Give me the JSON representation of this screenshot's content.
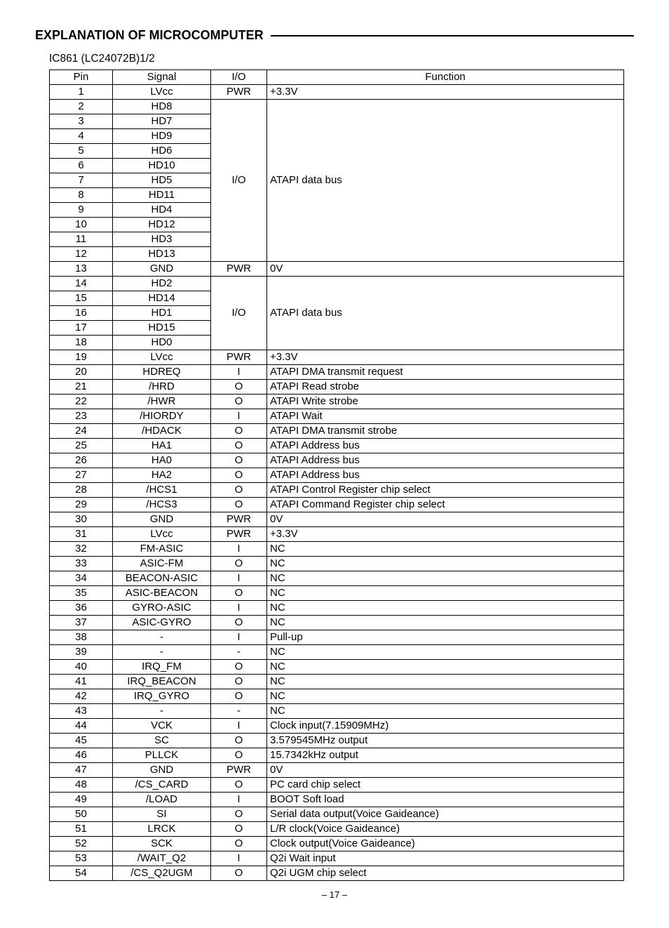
{
  "title": "EXPLANATION OF MICROCOMPUTER",
  "subtitle": "IC861 (LC24072B)1/2",
  "pageNumber": "– 17 –",
  "headers": {
    "pin": "Pin",
    "signal": "Signal",
    "io": "I/O",
    "function": "Function"
  },
  "rows": [
    {
      "pin": "1",
      "signal": "LVcc",
      "io": "PWR",
      "fn": "+3.3V"
    },
    {
      "pin": "2",
      "signal": "HD8",
      "io": "I/O",
      "fn": "ATAPI data bus",
      "iospan": 11,
      "fnspan": 11
    },
    {
      "pin": "3",
      "signal": "HD7"
    },
    {
      "pin": "4",
      "signal": "HD9"
    },
    {
      "pin": "5",
      "signal": "HD6"
    },
    {
      "pin": "6",
      "signal": "HD10"
    },
    {
      "pin": "7",
      "signal": "HD5"
    },
    {
      "pin": "8",
      "signal": "HD11"
    },
    {
      "pin": "9",
      "signal": "HD4"
    },
    {
      "pin": "10",
      "signal": "HD12"
    },
    {
      "pin": "11",
      "signal": "HD3"
    },
    {
      "pin": "12",
      "signal": "HD13"
    },
    {
      "pin": "13",
      "signal": "GND",
      "io": "PWR",
      "fn": "0V"
    },
    {
      "pin": "14",
      "signal": "HD2",
      "io": "I/O",
      "fn": "ATAPI data bus",
      "iospan": 5,
      "fnspan": 5
    },
    {
      "pin": "15",
      "signal": "HD14"
    },
    {
      "pin": "16",
      "signal": "HD1"
    },
    {
      "pin": "17",
      "signal": "HD15"
    },
    {
      "pin": "18",
      "signal": "HD0"
    },
    {
      "pin": "19",
      "signal": "LVcc",
      "io": "PWR",
      "fn": "+3.3V"
    },
    {
      "pin": "20",
      "signal": "HDREQ",
      "io": "I",
      "fn": "ATAPI  DMA transmit request"
    },
    {
      "pin": "21",
      "signal": "/HRD",
      "io": "O",
      "fn": "ATAPI  Read strobe"
    },
    {
      "pin": "22",
      "signal": "/HWR",
      "io": "O",
      "fn": "ATAPI  Write strobe"
    },
    {
      "pin": "23",
      "signal": "/HIORDY",
      "io": "I",
      "fn": "ATAPI  Wait"
    },
    {
      "pin": "24",
      "signal": "/HDACK",
      "io": "O",
      "fn": "ATAPI  DMA transmit strobe"
    },
    {
      "pin": "25",
      "signal": "HA1",
      "io": "O",
      "fn": "ATAPI Address bus"
    },
    {
      "pin": "26",
      "signal": "HA0",
      "io": "O",
      "fn": "ATAPI Address bus"
    },
    {
      "pin": "27",
      "signal": "HA2",
      "io": "O",
      "fn": "ATAPI Address bus"
    },
    {
      "pin": "28",
      "signal": "/HCS1",
      "io": "O",
      "fn": "ATAPI Control Register chip select"
    },
    {
      "pin": "29",
      "signal": "/HCS3",
      "io": "O",
      "fn": "ATAPI Command Register chip select"
    },
    {
      "pin": "30",
      "signal": "GND",
      "io": "PWR",
      "fn": "0V"
    },
    {
      "pin": "31",
      "signal": "LVcc",
      "io": "PWR",
      "fn": "+3.3V"
    },
    {
      "pin": "32",
      "signal": "FM-ASIC",
      "io": "I",
      "fn": "NC"
    },
    {
      "pin": "33",
      "signal": "ASIC-FM",
      "io": "O",
      "fn": "NC"
    },
    {
      "pin": "34",
      "signal": "BEACON-ASIC",
      "io": "I",
      "fn": "NC"
    },
    {
      "pin": "35",
      "signal": "ASIC-BEACON",
      "io": "O",
      "fn": "NC"
    },
    {
      "pin": "36",
      "signal": "GYRO-ASIC",
      "io": "I",
      "fn": "NC"
    },
    {
      "pin": "37",
      "signal": "ASIC-GYRO",
      "io": "O",
      "fn": "NC"
    },
    {
      "pin": "38",
      "signal": "-",
      "io": "I",
      "fn": "Pull-up"
    },
    {
      "pin": "39",
      "signal": "-",
      "io": "-",
      "fn": "NC"
    },
    {
      "pin": "40",
      "signal": "IRQ_FM",
      "io": "O",
      "fn": "NC"
    },
    {
      "pin": "41",
      "signal": "IRQ_BEACON",
      "io": "O",
      "fn": "NC"
    },
    {
      "pin": "42",
      "signal": "IRQ_GYRO",
      "io": "O",
      "fn": "NC"
    },
    {
      "pin": "43",
      "signal": "-",
      "io": "-",
      "fn": "NC"
    },
    {
      "pin": "44",
      "signal": "VCK",
      "io": "I",
      "fn": "Clock input(7.15909MHz)"
    },
    {
      "pin": "45",
      "signal": "SC",
      "io": "O",
      "fn": "3.579545MHz output"
    },
    {
      "pin": "46",
      "signal": "PLLCK",
      "io": "O",
      "fn": "15.7342kHz output"
    },
    {
      "pin": "47",
      "signal": "GND",
      "io": "PWR",
      "fn": "0V"
    },
    {
      "pin": "48",
      "signal": "/CS_CARD",
      "io": "O",
      "fn": "PC card chip select"
    },
    {
      "pin": "49",
      "signal": "/LOAD",
      "io": "I",
      "fn": "BOOT Soft load"
    },
    {
      "pin": "50",
      "signal": "SI",
      "io": "O",
      "fn": "Serial data output(Voice Gaideance)"
    },
    {
      "pin": "51",
      "signal": "LRCK",
      "io": "O",
      "fn": "L/R clock(Voice Gaideance)"
    },
    {
      "pin": "52",
      "signal": "SCK",
      "io": "O",
      "fn": "Clock output(Voice Gaideance)"
    },
    {
      "pin": "53",
      "signal": "/WAIT_Q2",
      "io": "I",
      "fn": "Q2i Wait input"
    },
    {
      "pin": "54",
      "signal": "/CS_Q2UGM",
      "io": "O",
      "fn": "Q2i UGM chip select"
    }
  ]
}
